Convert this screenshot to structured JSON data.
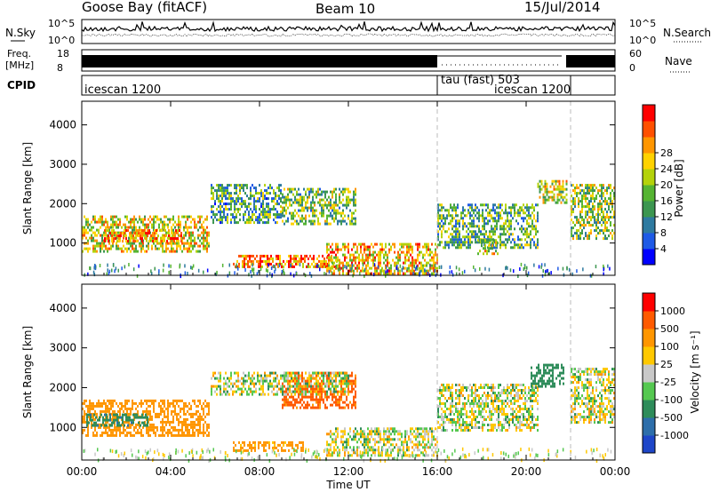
{
  "header": {
    "station": "Goose Bay (fitACF)",
    "beam": "Beam 10",
    "date": "15/Jul/2014"
  },
  "status_panels": {
    "sky_label": "N.Sky",
    "search_label": "N.Search",
    "sky_ticks": [
      "10^5",
      "10^0"
    ],
    "search_ticks": [
      "10^5",
      "10^0"
    ],
    "freq_label_1": "Freq.",
    "freq_label_2": "[MHz]",
    "freq_ticks": [
      "18",
      "8"
    ],
    "nave_label": "Nave",
    "nave_ticks": [
      "60",
      "0"
    ],
    "cpid_label": "CPID",
    "cpid_segments": [
      {
        "label": "icescan 1200",
        "start_h": 0,
        "end_h": 16
      },
      {
        "label": "tau (fast) 503",
        "start_h": 16,
        "end_h": 21.8
      },
      {
        "label": "icescan 1200",
        "start_h": 21.8,
        "end_h": 24
      }
    ]
  },
  "chart_data": [
    {
      "type": "heatmap",
      "name": "power",
      "xlabel": "Time UT",
      "ylabel": "Slant Range [km]",
      "x_ticks": [
        "00:00",
        "04:00",
        "08:00",
        "12:00",
        "16:00",
        "20:00",
        "00:00"
      ],
      "y_ticks": [
        "1000",
        "2000",
        "3000",
        "4000"
      ],
      "xlim_hours": [
        0,
        24
      ],
      "ylim_km": [
        180,
        4600
      ],
      "colorbar_label": "Power [dB]",
      "colorbar_ticks": [
        "4",
        "8",
        "12",
        "16",
        "20",
        "24",
        "28"
      ],
      "colorbar_colors": [
        "#0000ff",
        "#1e5ae6",
        "#2e7aa0",
        "#3c9650",
        "#55b432",
        "#b4d20a",
        "#ffd200",
        "#ff9600",
        "#ff5000",
        "#ff0000"
      ],
      "echo_regions": [
        {
          "t0": 0.0,
          "t1": 5.7,
          "r0": 800,
          "r1": 1700,
          "level": 0.6
        },
        {
          "t0": 1.0,
          "t1": 4.5,
          "r0": 1050,
          "r1": 1350,
          "level": 0.8
        },
        {
          "t0": 6.8,
          "t1": 11.5,
          "r0": 400,
          "r1": 700,
          "level": 0.85
        },
        {
          "t0": 11.0,
          "t1": 16.0,
          "r0": 250,
          "r1": 1000,
          "level": 0.7
        },
        {
          "t0": 9.0,
          "t1": 12.3,
          "r0": 1500,
          "r1": 2400,
          "level": 0.45
        },
        {
          "t0": 5.8,
          "t1": 9.0,
          "r0": 1500,
          "r1": 2500,
          "level": 0.35
        },
        {
          "t0": 16.0,
          "t1": 20.5,
          "r0": 900,
          "r1": 2000,
          "level": 0.4
        },
        {
          "t0": 17.8,
          "t1": 18.7,
          "r0": 750,
          "r1": 1100,
          "level": 0.6
        },
        {
          "t0": 20.5,
          "t1": 21.8,
          "r0": 2000,
          "r1": 2600,
          "level": 0.55
        },
        {
          "t0": 22.0,
          "t1": 24.0,
          "r0": 1100,
          "r1": 2500,
          "level": 0.5
        }
      ]
    },
    {
      "type": "heatmap",
      "name": "velocity",
      "xlabel": "Time UT",
      "ylabel": "Slant Range [km]",
      "x_ticks": [
        "00:00",
        "04:00",
        "08:00",
        "12:00",
        "16:00",
        "20:00",
        "00:00"
      ],
      "y_ticks": [
        "1000",
        "2000",
        "3000",
        "4000"
      ],
      "xlim_hours": [
        0,
        24
      ],
      "ylim_km": [
        180,
        4600
      ],
      "colorbar_label": "Velocity [m s⁻¹]",
      "colorbar_ticks": [
        "1000",
        "500",
        "100",
        "25",
        "-25",
        "-100",
        "-500",
        "-1000"
      ],
      "colorbar_colors": [
        "#1e46c8",
        "#2d6eaa",
        "#2e8c5a",
        "#55c850",
        "#c8c8c8",
        "#ffc800",
        "#ff9600",
        "#ff5a00",
        "#ff0000"
      ],
      "echo_regions": [
        {
          "t0": 0.0,
          "t1": 5.7,
          "r0": 800,
          "r1": 1700,
          "vel": -300
        },
        {
          "t0": 0.2,
          "t1": 3.0,
          "r0": 1050,
          "r1": 1350,
          "vel": 400
        },
        {
          "t0": 6.8,
          "t1": 10.0,
          "r0": 400,
          "r1": 650,
          "vel": -200
        },
        {
          "t0": 9.0,
          "t1": 12.3,
          "r0": 1500,
          "r1": 2400,
          "vel": -600
        },
        {
          "t0": 5.8,
          "t1": 12.0,
          "r0": 1800,
          "r1": 2400,
          "vel": 0
        },
        {
          "t0": 11.0,
          "t1": 16.0,
          "r0": 300,
          "r1": 1000,
          "vel": 0
        },
        {
          "t0": 16.0,
          "t1": 20.5,
          "r0": 900,
          "r1": 2100,
          "vel": 0
        },
        {
          "t0": 20.2,
          "t1": 21.7,
          "r0": 2000,
          "r1": 2600,
          "vel": 300
        },
        {
          "t0": 22.0,
          "t1": 24.0,
          "r0": 1100,
          "r1": 2500,
          "vel": 0
        }
      ]
    }
  ]
}
